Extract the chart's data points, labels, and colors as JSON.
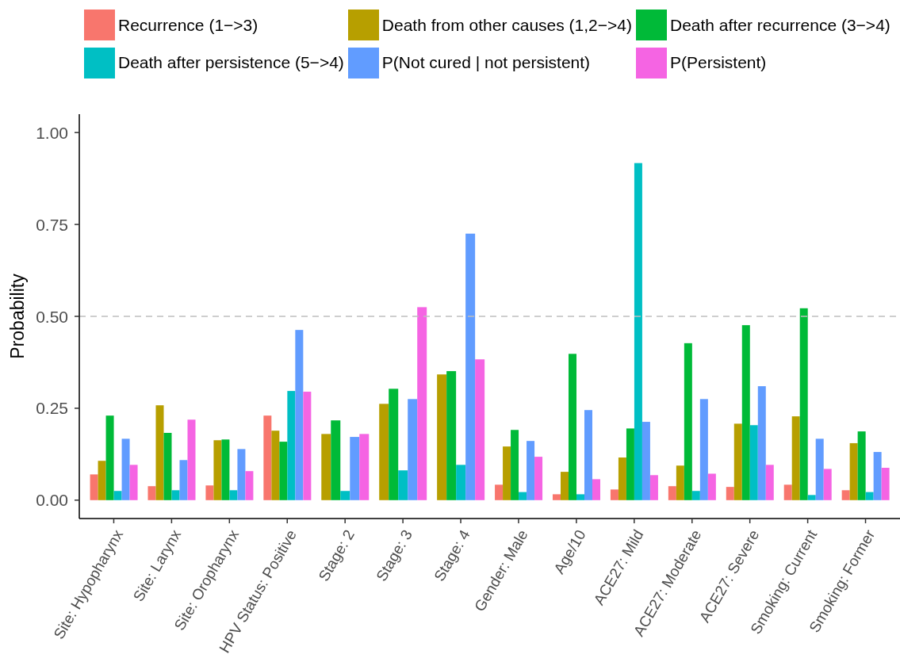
{
  "chart_data": {
    "type": "bar",
    "ylabel": "Probability",
    "legend": "top",
    "categories": [
      "Site: Hypopharynx",
      "Site: Larynx",
      "Site: Oropharynx",
      "HPV Status: Positive",
      "Stage: 2",
      "Stage: 3",
      "Stage: 4",
      "Gender: Male",
      "Age/10",
      "ACE27: Mild",
      "ACE27: Moderate",
      "ACE27: Severe",
      "Smoking: Current",
      "Smoking: Former"
    ],
    "series": [
      {
        "name": "Recurrence (1−>3)",
        "color": "#f8766d",
        "values": [
          0.07,
          0.038,
          0.04,
          0.23,
          null,
          null,
          null,
          0.042,
          0.016,
          0.029,
          0.038,
          0.036,
          0.042,
          0.027
        ]
      },
      {
        "name": "Death from other causes (1,2−>4)",
        "color": "#b79f00",
        "values": [
          0.107,
          0.258,
          0.163,
          0.189,
          0.18,
          0.262,
          0.342,
          0.146,
          0.077,
          0.116,
          0.094,
          0.208,
          0.228,
          0.155
        ]
      },
      {
        "name": "Death after recurrence (3−>4)",
        "color": "#00ba38",
        "values": [
          0.23,
          0.183,
          0.165,
          0.159,
          0.217,
          0.303,
          0.351,
          0.191,
          0.398,
          0.195,
          0.427,
          0.476,
          0.522,
          0.187
        ]
      },
      {
        "name": "Death after persistence (5−>4)",
        "color": "#00bfc4",
        "values": [
          0.025,
          0.027,
          0.027,
          0.297,
          0.025,
          0.081,
          0.096,
          0.022,
          0.016,
          0.917,
          0.025,
          0.204,
          0.014,
          0.022
        ]
      },
      {
        "name": "P(Not cured | not persistent)",
        "color": "#619cff",
        "values": [
          0.167,
          0.109,
          0.139,
          0.463,
          0.172,
          0.275,
          0.725,
          0.161,
          0.245,
          0.213,
          0.275,
          0.31,
          0.167,
          0.131
        ]
      },
      {
        "name": "P(Persistent)",
        "color": "#f564e3",
        "values": [
          0.096,
          0.219,
          0.079,
          0.295,
          0.18,
          0.525,
          0.383,
          0.118,
          0.057,
          0.068,
          0.072,
          0.096,
          0.085,
          0.088
        ]
      }
    ],
    "ylim": [
      -0.05,
      1.05
    ],
    "yticks": [
      {
        "value": 0,
        "label": "0.00"
      },
      {
        "value": 0.25,
        "label": "0.25"
      },
      {
        "value": 0.5,
        "label": "0.50"
      },
      {
        "value": 0.75,
        "label": "0.75"
      },
      {
        "value": 1,
        "label": "1.00"
      }
    ],
    "ref_lines": [
      {
        "axis": "y",
        "value": 0.5,
        "color": "#bebebe",
        "line_style": "dashed"
      }
    ]
  }
}
